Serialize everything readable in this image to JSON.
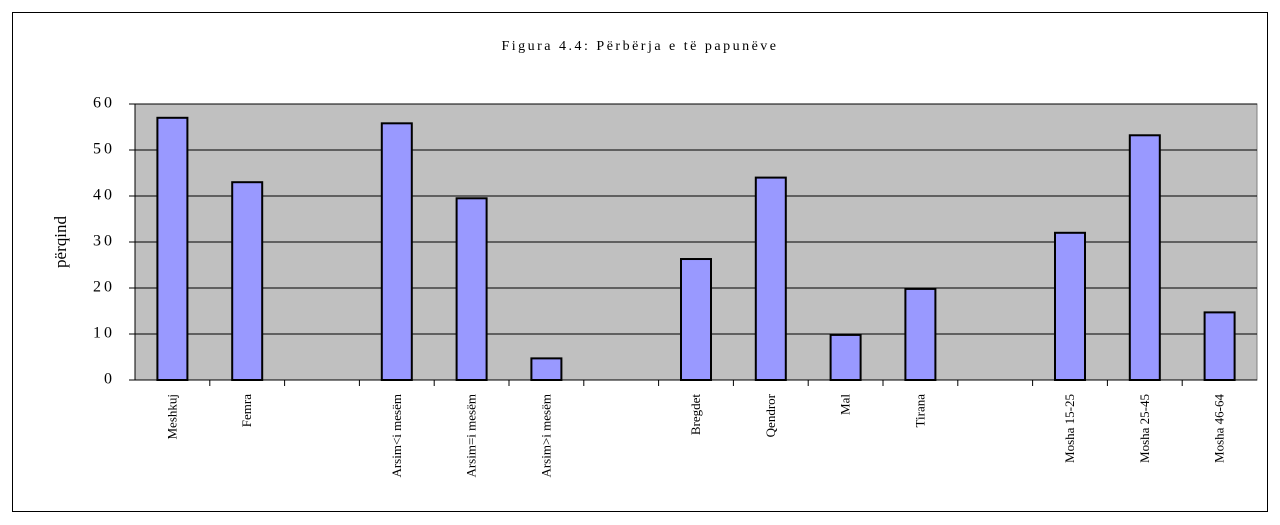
{
  "chart_data": {
    "type": "bar",
    "title": "Figura 4.4: Përbërja e të papunëve",
    "y_label": "përqind",
    "categories": [
      "Meshkuj",
      "Femra",
      null,
      "Arsim<i mesëm",
      "Arsim=i mesëm",
      "Arsim>i mesëm",
      null,
      "Bregdet",
      "Qendror",
      "Mal",
      "Tirana",
      null,
      "Mosha 15-25",
      "Mosha 25-45",
      "Mosha 46-64"
    ],
    "values": [
      57,
      43,
      null,
      55.8,
      39.5,
      4.7,
      null,
      26.3,
      44,
      9.8,
      19.8,
      null,
      32,
      53.2,
      14.7
    ],
    "color": "#9999ff",
    "ylim": [
      0,
      60
    ],
    "yticks": [
      0,
      10,
      20,
      30,
      40,
      50,
      60
    ],
    "grid": true
  }
}
